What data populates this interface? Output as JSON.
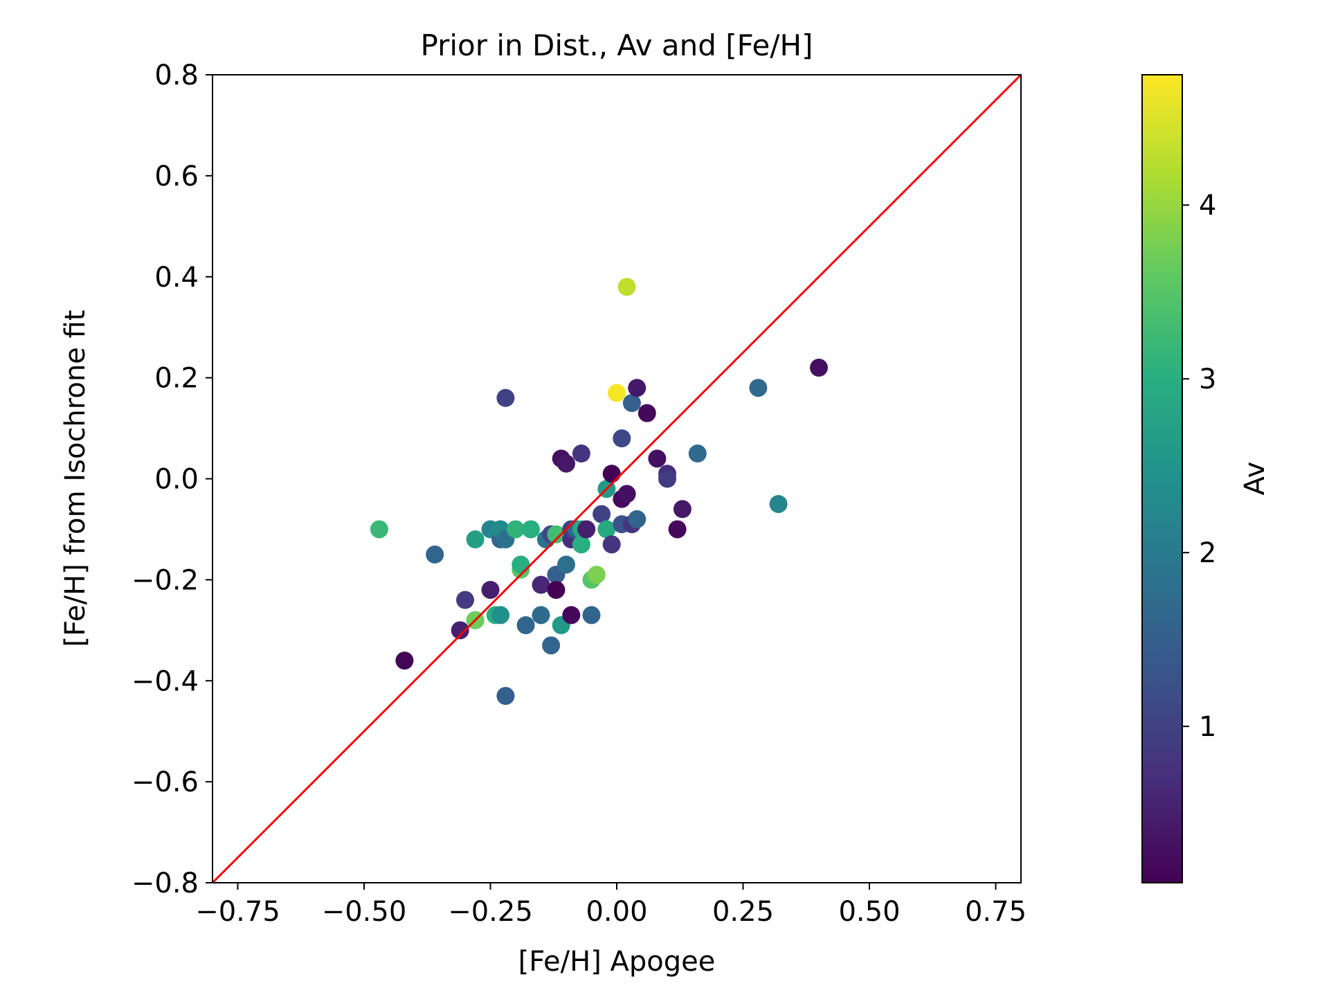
{
  "chart_data": {
    "type": "scatter",
    "title": "Prior in Dist., Av and [Fe/H]",
    "xlabel": "[Fe/H] Apogee",
    "ylabel": "[Fe/H] from Isochrone fit",
    "xlim": [
      -0.8,
      0.8
    ],
    "ylim": [
      -0.8,
      0.8
    ],
    "xticks": [
      -0.75,
      -0.5,
      -0.25,
      0.0,
      0.25,
      0.5,
      0.75
    ],
    "xtick_labels": [
      "−0.75",
      "−0.50",
      "−0.25",
      "0.00",
      "0.25",
      "0.50",
      "0.75"
    ],
    "yticks": [
      -0.8,
      -0.6,
      -0.4,
      -0.2,
      0.0,
      0.2,
      0.4,
      0.6,
      0.8
    ],
    "ytick_labels": [
      "−0.8",
      "−0.6",
      "−0.4",
      "−0.2",
      "0.0",
      "0.2",
      "0.4",
      "0.6",
      "0.8"
    ],
    "reference_line": {
      "label": "",
      "x": [
        -0.8,
        0.8
      ],
      "y": [
        -0.8,
        0.8
      ],
      "color": "#ff0000"
    },
    "colorbar": {
      "label": "Av",
      "range": [
        0.1,
        4.75
      ],
      "ticks": [
        1,
        2,
        3,
        4
      ],
      "tick_labels": [
        "1",
        "2",
        "3",
        "4"
      ],
      "colormap": "viridis"
    },
    "points": [
      {
        "x": -0.47,
        "y": -0.1,
        "c": 3.2
      },
      {
        "x": -0.42,
        "y": -0.36,
        "c": 0.15
      },
      {
        "x": -0.36,
        "y": -0.15,
        "c": 1.6
      },
      {
        "x": -0.31,
        "y": -0.3,
        "c": 0.5
      },
      {
        "x": -0.3,
        "y": -0.24,
        "c": 0.9
      },
      {
        "x": -0.28,
        "y": -0.28,
        "c": 1.2
      },
      {
        "x": -0.28,
        "y": -0.12,
        "c": 2.7
      },
      {
        "x": -0.28,
        "y": -0.28,
        "c": 3.7
      },
      {
        "x": -0.25,
        "y": -0.22,
        "c": 0.5
      },
      {
        "x": -0.25,
        "y": -0.1,
        "c": 2.2
      },
      {
        "x": -0.24,
        "y": -0.27,
        "c": 3.0
      },
      {
        "x": -0.23,
        "y": -0.12,
        "c": 1.6
      },
      {
        "x": -0.23,
        "y": -0.1,
        "c": 2.3
      },
      {
        "x": -0.23,
        "y": -0.27,
        "c": 2.4
      },
      {
        "x": -0.22,
        "y": 0.16,
        "c": 1.0
      },
      {
        "x": -0.22,
        "y": -0.43,
        "c": 1.5
      },
      {
        "x": -0.22,
        "y": -0.12,
        "c": 1.8
      },
      {
        "x": -0.2,
        "y": -0.1,
        "c": 3.1
      },
      {
        "x": -0.19,
        "y": -0.18,
        "c": 3.5
      },
      {
        "x": -0.19,
        "y": -0.17,
        "c": 3.0
      },
      {
        "x": -0.18,
        "y": -0.29,
        "c": 1.6
      },
      {
        "x": -0.17,
        "y": -0.1,
        "c": 3.0
      },
      {
        "x": -0.15,
        "y": -0.21,
        "c": 0.6
      },
      {
        "x": -0.15,
        "y": -0.27,
        "c": 1.7
      },
      {
        "x": -0.14,
        "y": -0.12,
        "c": 1.9
      },
      {
        "x": -0.13,
        "y": -0.33,
        "c": 1.6
      },
      {
        "x": -0.13,
        "y": -0.11,
        "c": 1.1
      },
      {
        "x": -0.12,
        "y": -0.19,
        "c": 1.5
      },
      {
        "x": -0.12,
        "y": -0.22,
        "c": 0.1
      },
      {
        "x": -0.12,
        "y": -0.11,
        "c": 3.3
      },
      {
        "x": -0.11,
        "y": 0.04,
        "c": 0.3
      },
      {
        "x": -0.11,
        "y": -0.29,
        "c": 2.6
      },
      {
        "x": -0.1,
        "y": 0.03,
        "c": 0.4
      },
      {
        "x": -0.1,
        "y": -0.17,
        "c": 1.8
      },
      {
        "x": -0.09,
        "y": -0.27,
        "c": 0.2
      },
      {
        "x": -0.09,
        "y": -0.12,
        "c": 0.7
      },
      {
        "x": -0.09,
        "y": -0.1,
        "c": 1.0
      },
      {
        "x": -0.08,
        "y": -0.1,
        "c": 1.6
      },
      {
        "x": -0.07,
        "y": -0.13,
        "c": 3.0
      },
      {
        "x": -0.07,
        "y": -0.1,
        "c": 2.9
      },
      {
        "x": -0.07,
        "y": 0.05,
        "c": 0.8
      },
      {
        "x": -0.06,
        "y": -0.1,
        "c": 0.5
      },
      {
        "x": -0.05,
        "y": -0.27,
        "c": 1.6
      },
      {
        "x": -0.05,
        "y": -0.2,
        "c": 3.5
      },
      {
        "x": -0.04,
        "y": -0.19,
        "c": 3.8
      },
      {
        "x": -0.03,
        "y": -0.07,
        "c": 1.0
      },
      {
        "x": -0.02,
        "y": -0.02,
        "c": 2.6
      },
      {
        "x": -0.02,
        "y": -0.1,
        "c": 2.9
      },
      {
        "x": -0.01,
        "y": 0.01,
        "c": 0.1
      },
      {
        "x": -0.01,
        "y": -0.13,
        "c": 0.8
      },
      {
        "x": 0.0,
        "y": 0.17,
        "c": 4.7
      },
      {
        "x": 0.01,
        "y": -0.04,
        "c": 0.2
      },
      {
        "x": 0.01,
        "y": 0.08,
        "c": 1.1
      },
      {
        "x": 0.01,
        "y": -0.09,
        "c": 1.3
      },
      {
        "x": 0.02,
        "y": 0.38,
        "c": 4.3
      },
      {
        "x": 0.02,
        "y": -0.03,
        "c": 0.3
      },
      {
        "x": 0.03,
        "y": 0.15,
        "c": 1.5
      },
      {
        "x": 0.03,
        "y": -0.09,
        "c": 0.8
      },
      {
        "x": 0.04,
        "y": 0.18,
        "c": 0.4
      },
      {
        "x": 0.04,
        "y": -0.08,
        "c": 1.6
      },
      {
        "x": 0.06,
        "y": 0.13,
        "c": 0.2
      },
      {
        "x": 0.08,
        "y": 0.04,
        "c": 0.3
      },
      {
        "x": 0.1,
        "y": 0.01,
        "c": 0.7
      },
      {
        "x": 0.1,
        "y": 0.0,
        "c": 0.9
      },
      {
        "x": 0.12,
        "y": -0.1,
        "c": 0.2
      },
      {
        "x": 0.13,
        "y": -0.06,
        "c": 0.4
      },
      {
        "x": 0.16,
        "y": 0.05,
        "c": 1.7
      },
      {
        "x": 0.28,
        "y": 0.18,
        "c": 1.7
      },
      {
        "x": 0.32,
        "y": -0.05,
        "c": 2.2
      },
      {
        "x": 0.4,
        "y": 0.22,
        "c": 0.3
      }
    ]
  }
}
